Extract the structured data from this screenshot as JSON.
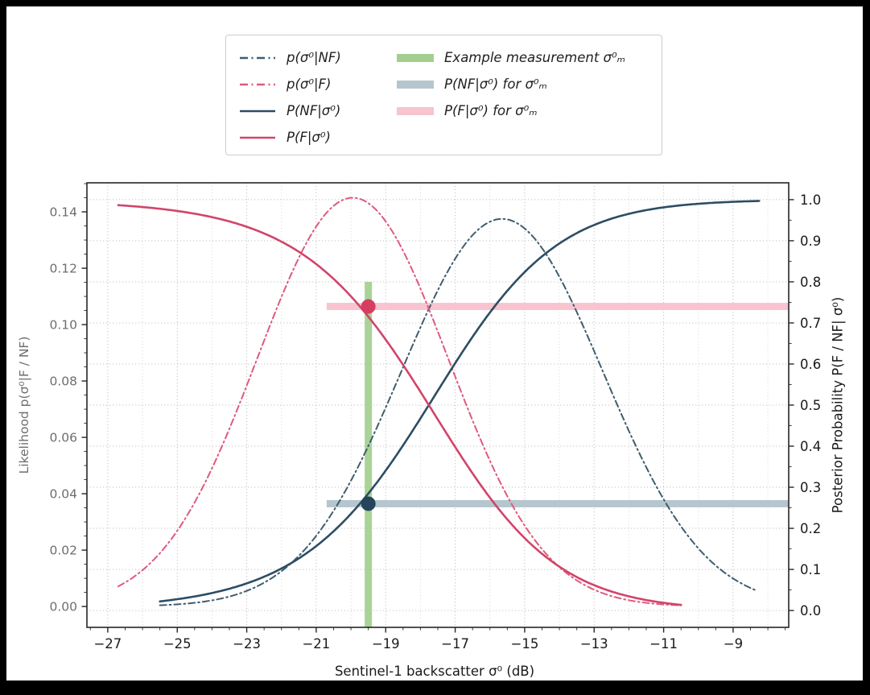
{
  "figure": {
    "background": "#000000",
    "canvas_color": "#ffffff",
    "frame_color": "#262626",
    "grid_color_major": "#c2c2c2",
    "grid_color_minor": "#dedede"
  },
  "legend": {
    "items": [
      {
        "label": "p(σ⁰|NF)",
        "sample": "dashdot-line",
        "color": "#3f5d6e"
      },
      {
        "label": "p(σ⁰|F)",
        "sample": "dashdot-line",
        "color": "#df5a7c"
      },
      {
        "label": "P(NF|σ⁰)",
        "sample": "solid-line",
        "color": "#2c4d63"
      },
      {
        "label": "P(F|σ⁰)",
        "sample": "solid-line",
        "color": "#d2446a"
      },
      {
        "label": "Example measurement σ⁰ₘ",
        "sample": "bar",
        "color": "#a3cf8e"
      },
      {
        "label": "P(NF|σ⁰) for σ⁰ₘ",
        "sample": "bar",
        "color": "#b6c6ce"
      },
      {
        "label": "P(F|σ⁰) for σ⁰ₘ",
        "sample": "bar",
        "color": "#f7c4cf"
      }
    ]
  },
  "chart_data": {
    "type": "line",
    "title": "",
    "xlabel": "Sentinel-1 backscatter σ⁰ (dB)",
    "ylabel_left": "Likelihood p(σ⁰|F / NF)",
    "ylabel_right": "Posterior Probability P(F / NF| σ⁰)",
    "xlim": [
      -27.6,
      -7.4
    ],
    "ylim_left": [
      -0.0074,
      0.1503
    ],
    "ylim_right": [
      -0.041,
      1.041
    ],
    "x_ticks": [
      -27,
      -25,
      -23,
      -21,
      -19,
      -17,
      -15,
      -13,
      -11,
      -9
    ],
    "x_minor_step": 0.5,
    "y_ticks_left": [
      0.0,
      0.02,
      0.04,
      0.06,
      0.08,
      0.1,
      0.12,
      0.14
    ],
    "y_minor_step_left": 0.005,
    "y_ticks_right": [
      0.0,
      0.1,
      0.2,
      0.3,
      0.4,
      0.5,
      0.6,
      0.7,
      0.8,
      0.9,
      1.0
    ],
    "y_minor_step_right": 0.05,
    "grid": true,
    "legend_position": "upper center",
    "series": [
      {
        "name": "p(σ⁰|NF)",
        "curve": "gaussian",
        "cls": "NF",
        "mean": -15.65,
        "sigma": 2.9,
        "peak": 0.1375,
        "x_range": [
          -25.5,
          -8.3
        ],
        "line": "dashdot",
        "color": "#3f5d6e",
        "axis": "left"
      },
      {
        "name": "p(σ⁰|F)",
        "curve": "gaussian",
        "cls": "F",
        "mean": -19.95,
        "sigma": 2.75,
        "peak": 0.145,
        "x_range": [
          -26.7,
          -10.5
        ],
        "line": "dashdot",
        "color": "#df5a7c",
        "axis": "left"
      },
      {
        "name": "P(NF|σ⁰)",
        "curve": "posterior",
        "cls": "NF",
        "x_range": [
          -25.5,
          -8.25
        ],
        "line": "solid",
        "color": "#2c4d63",
        "axis": "right"
      },
      {
        "name": "P(F|σ⁰)",
        "curve": "posterior",
        "cls": "F",
        "x_range": [
          -26.7,
          -10.5
        ],
        "line": "solid",
        "color": "#d2446a",
        "axis": "right"
      }
    ],
    "measurement": {
      "label": "σ⁰ₘ",
      "x_db": -19.5,
      "posterior_f": 0.74,
      "posterior_nf": 0.26,
      "marker_f_color": "#d63e5f",
      "marker_nf_color": "#24455b",
      "green_line_color": "#a3cf8e",
      "green_line_top_posterior": 0.8,
      "bar_f_color": "#f7c4cf",
      "bar_nf_color": "#b6c6ce",
      "bar_x_start": -20.7
    }
  }
}
